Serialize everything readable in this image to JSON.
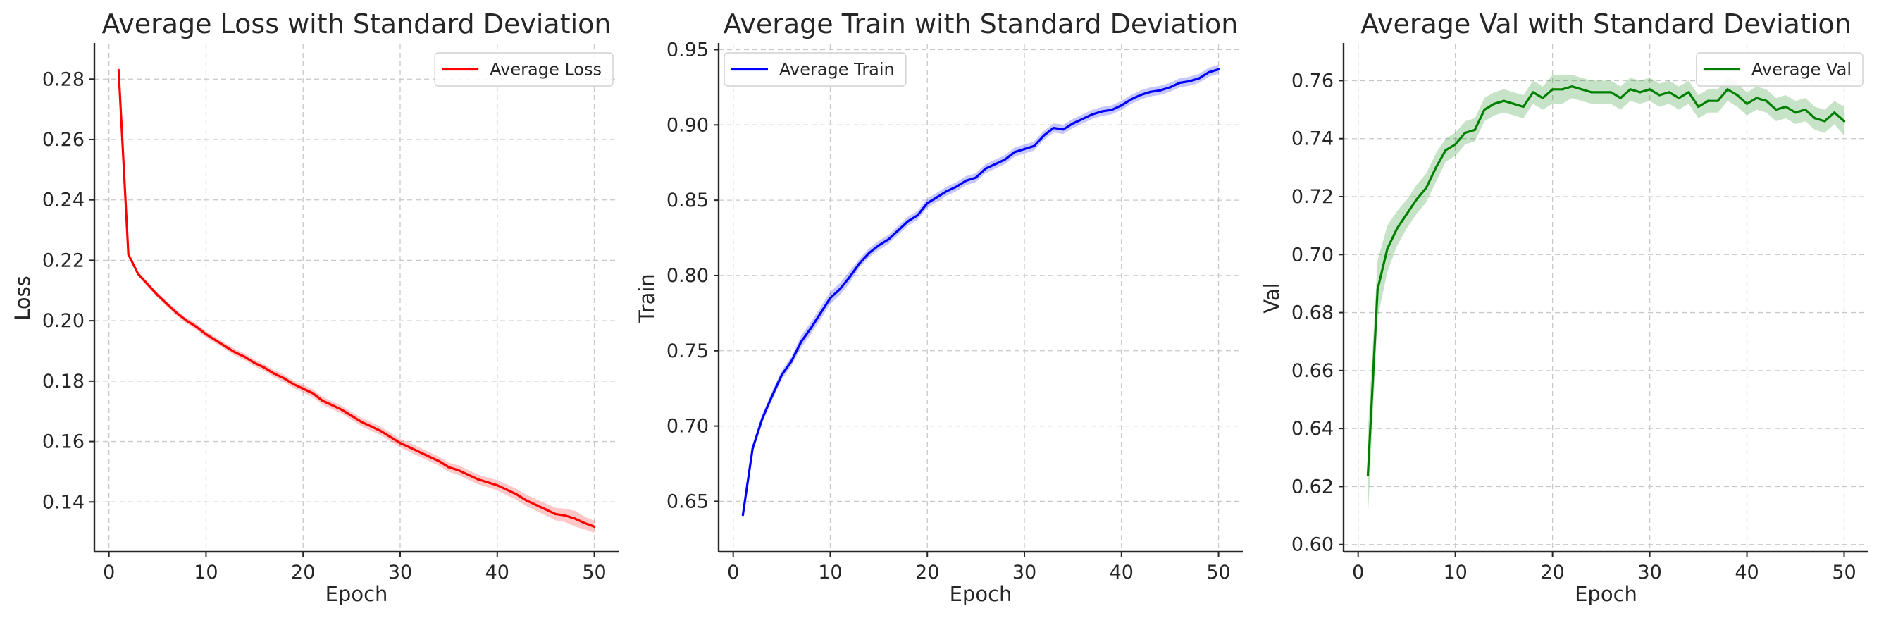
{
  "chart_data": [
    {
      "type": "line",
      "title": "Average Loss with Standard Deviation",
      "xlabel": "Epoch",
      "ylabel": "Loss",
      "xlim": [
        -1.5,
        52.5
      ],
      "ylim": [
        0.1235,
        0.2915
      ],
      "xticks": [
        0,
        10,
        20,
        30,
        40,
        50
      ],
      "yticks": [
        0.14,
        0.16,
        0.18,
        0.2,
        0.22,
        0.24,
        0.26,
        0.28
      ],
      "ytick_decimals": 2,
      "grid": true,
      "legend": "top-right",
      "color": "#ff0000",
      "series": [
        {
          "name": "Average Loss",
          "x": [
            1,
            2,
            3,
            4,
            5,
            6,
            7,
            8,
            9,
            10,
            11,
            12,
            13,
            14,
            15,
            16,
            17,
            18,
            19,
            20,
            21,
            22,
            23,
            24,
            25,
            26,
            27,
            28,
            29,
            30,
            31,
            32,
            33,
            34,
            35,
            36,
            37,
            38,
            39,
            40,
            41,
            42,
            43,
            44,
            45,
            46,
            47,
            48,
            49,
            50
          ],
          "values": [
            0.283,
            0.222,
            0.2155,
            0.212,
            0.2085,
            0.2055,
            0.2025,
            0.2,
            0.198,
            0.1955,
            0.1935,
            0.1915,
            0.1895,
            0.188,
            0.186,
            0.1845,
            0.1825,
            0.181,
            0.179,
            0.1775,
            0.176,
            0.1735,
            0.172,
            0.1705,
            0.1685,
            0.1665,
            0.165,
            0.1635,
            0.1615,
            0.1595,
            0.158,
            0.1565,
            0.155,
            0.1535,
            0.1515,
            0.1505,
            0.149,
            0.1475,
            0.1465,
            0.1455,
            0.144,
            0.1425,
            0.1405,
            0.139,
            0.1375,
            0.136,
            0.1355,
            0.1345,
            0.133,
            0.1318
          ],
          "std": [
            0.0005,
            0.0007,
            0.0008,
            0.0008,
            0.0008,
            0.0009,
            0.0009,
            0.0009,
            0.001,
            0.001,
            0.001,
            0.001,
            0.0011,
            0.0011,
            0.0011,
            0.0011,
            0.0012,
            0.0012,
            0.0012,
            0.0012,
            0.0013,
            0.0013,
            0.0013,
            0.0013,
            0.0013,
            0.0014,
            0.0014,
            0.0014,
            0.0014,
            0.0014,
            0.0015,
            0.0015,
            0.0015,
            0.0015,
            0.0015,
            0.0016,
            0.0016,
            0.0016,
            0.0016,
            0.0017,
            0.0018,
            0.0018,
            0.0019,
            0.0019,
            0.002,
            0.0021,
            0.0022,
            0.0026,
            0.0021,
            0.002
          ]
        }
      ]
    },
    {
      "type": "line",
      "title": "Average Train with Standard Deviation",
      "xlabel": "Epoch",
      "ylabel": "Train",
      "xlim": [
        -1.5,
        52.5
      ],
      "ylim": [
        0.6165,
        0.9535
      ],
      "xticks": [
        0,
        10,
        20,
        30,
        40,
        50
      ],
      "yticks": [
        0.65,
        0.7,
        0.75,
        0.8,
        0.85,
        0.9,
        0.95
      ],
      "ytick_decimals": 2,
      "grid": true,
      "legend": "top-left",
      "color": "#0000ff",
      "series": [
        {
          "name": "Average Train",
          "x": [
            1,
            2,
            3,
            4,
            5,
            6,
            7,
            8,
            9,
            10,
            11,
            12,
            13,
            14,
            15,
            16,
            17,
            18,
            19,
            20,
            21,
            22,
            23,
            24,
            25,
            26,
            27,
            28,
            29,
            30,
            31,
            32,
            33,
            34,
            35,
            36,
            37,
            38,
            39,
            40,
            41,
            42,
            43,
            44,
            45,
            46,
            47,
            48,
            49,
            50
          ],
          "values": [
            0.641,
            0.685,
            0.705,
            0.72,
            0.734,
            0.743,
            0.756,
            0.765,
            0.775,
            0.785,
            0.791,
            0.799,
            0.808,
            0.815,
            0.82,
            0.824,
            0.83,
            0.836,
            0.84,
            0.848,
            0.852,
            0.856,
            0.859,
            0.863,
            0.865,
            0.871,
            0.874,
            0.877,
            0.882,
            0.884,
            0.886,
            0.893,
            0.898,
            0.897,
            0.901,
            0.904,
            0.907,
            0.909,
            0.91,
            0.913,
            0.917,
            0.92,
            0.922,
            0.923,
            0.925,
            0.928,
            0.929,
            0.931,
            0.935,
            0.937
          ],
          "std": [
            0.004,
            0.003,
            0.003,
            0.003,
            0.003,
            0.003,
            0.004,
            0.004,
            0.004,
            0.004,
            0.004,
            0.004,
            0.003,
            0.003,
            0.003,
            0.003,
            0.003,
            0.003,
            0.003,
            0.003,
            0.003,
            0.003,
            0.003,
            0.003,
            0.003,
            0.003,
            0.003,
            0.003,
            0.003,
            0.003,
            0.003,
            0.003,
            0.003,
            0.003,
            0.003,
            0.003,
            0.003,
            0.003,
            0.003,
            0.003,
            0.003,
            0.003,
            0.003,
            0.003,
            0.003,
            0.003,
            0.003,
            0.003,
            0.003,
            0.003
          ]
        }
      ]
    },
    {
      "type": "line",
      "title": "Average Val with Standard Deviation",
      "xlabel": "Epoch",
      "ylabel": "Val",
      "xlim": [
        -1.5,
        52.5
      ],
      "ylim": [
        0.5975,
        0.7725
      ],
      "xticks": [
        0,
        10,
        20,
        30,
        40,
        50
      ],
      "yticks": [
        0.6,
        0.62,
        0.64,
        0.66,
        0.68,
        0.7,
        0.72,
        0.74,
        0.76
      ],
      "ytick_decimals": 2,
      "grid": true,
      "legend": "top-right",
      "color": "#008000",
      "series": [
        {
          "name": "Average Val",
          "x": [
            1,
            2,
            3,
            4,
            5,
            6,
            7,
            8,
            9,
            10,
            11,
            12,
            13,
            14,
            15,
            16,
            17,
            18,
            19,
            20,
            21,
            22,
            23,
            24,
            25,
            26,
            27,
            28,
            29,
            30,
            31,
            32,
            33,
            34,
            35,
            36,
            37,
            38,
            39,
            40,
            41,
            42,
            43,
            44,
            45,
            46,
            47,
            48,
            49,
            50
          ],
          "values": [
            0.624,
            0.688,
            0.702,
            0.709,
            0.714,
            0.719,
            0.723,
            0.73,
            0.736,
            0.738,
            0.742,
            0.743,
            0.75,
            0.752,
            0.753,
            0.752,
            0.751,
            0.756,
            0.754,
            0.757,
            0.757,
            0.758,
            0.757,
            0.756,
            0.756,
            0.756,
            0.754,
            0.757,
            0.756,
            0.757,
            0.755,
            0.756,
            0.754,
            0.756,
            0.751,
            0.753,
            0.753,
            0.757,
            0.755,
            0.752,
            0.754,
            0.753,
            0.75,
            0.751,
            0.749,
            0.75,
            0.747,
            0.746,
            0.749,
            0.746
          ],
          "std": [
            0.015,
            0.01,
            0.008,
            0.006,
            0.005,
            0.005,
            0.005,
            0.005,
            0.004,
            0.004,
            0.004,
            0.004,
            0.004,
            0.004,
            0.004,
            0.004,
            0.004,
            0.004,
            0.004,
            0.005,
            0.005,
            0.004,
            0.004,
            0.004,
            0.004,
            0.004,
            0.004,
            0.004,
            0.004,
            0.004,
            0.004,
            0.004,
            0.004,
            0.004,
            0.004,
            0.004,
            0.004,
            0.004,
            0.004,
            0.004,
            0.004,
            0.004,
            0.004,
            0.004,
            0.004,
            0.004,
            0.004,
            0.004,
            0.004,
            0.005
          ]
        }
      ]
    }
  ]
}
